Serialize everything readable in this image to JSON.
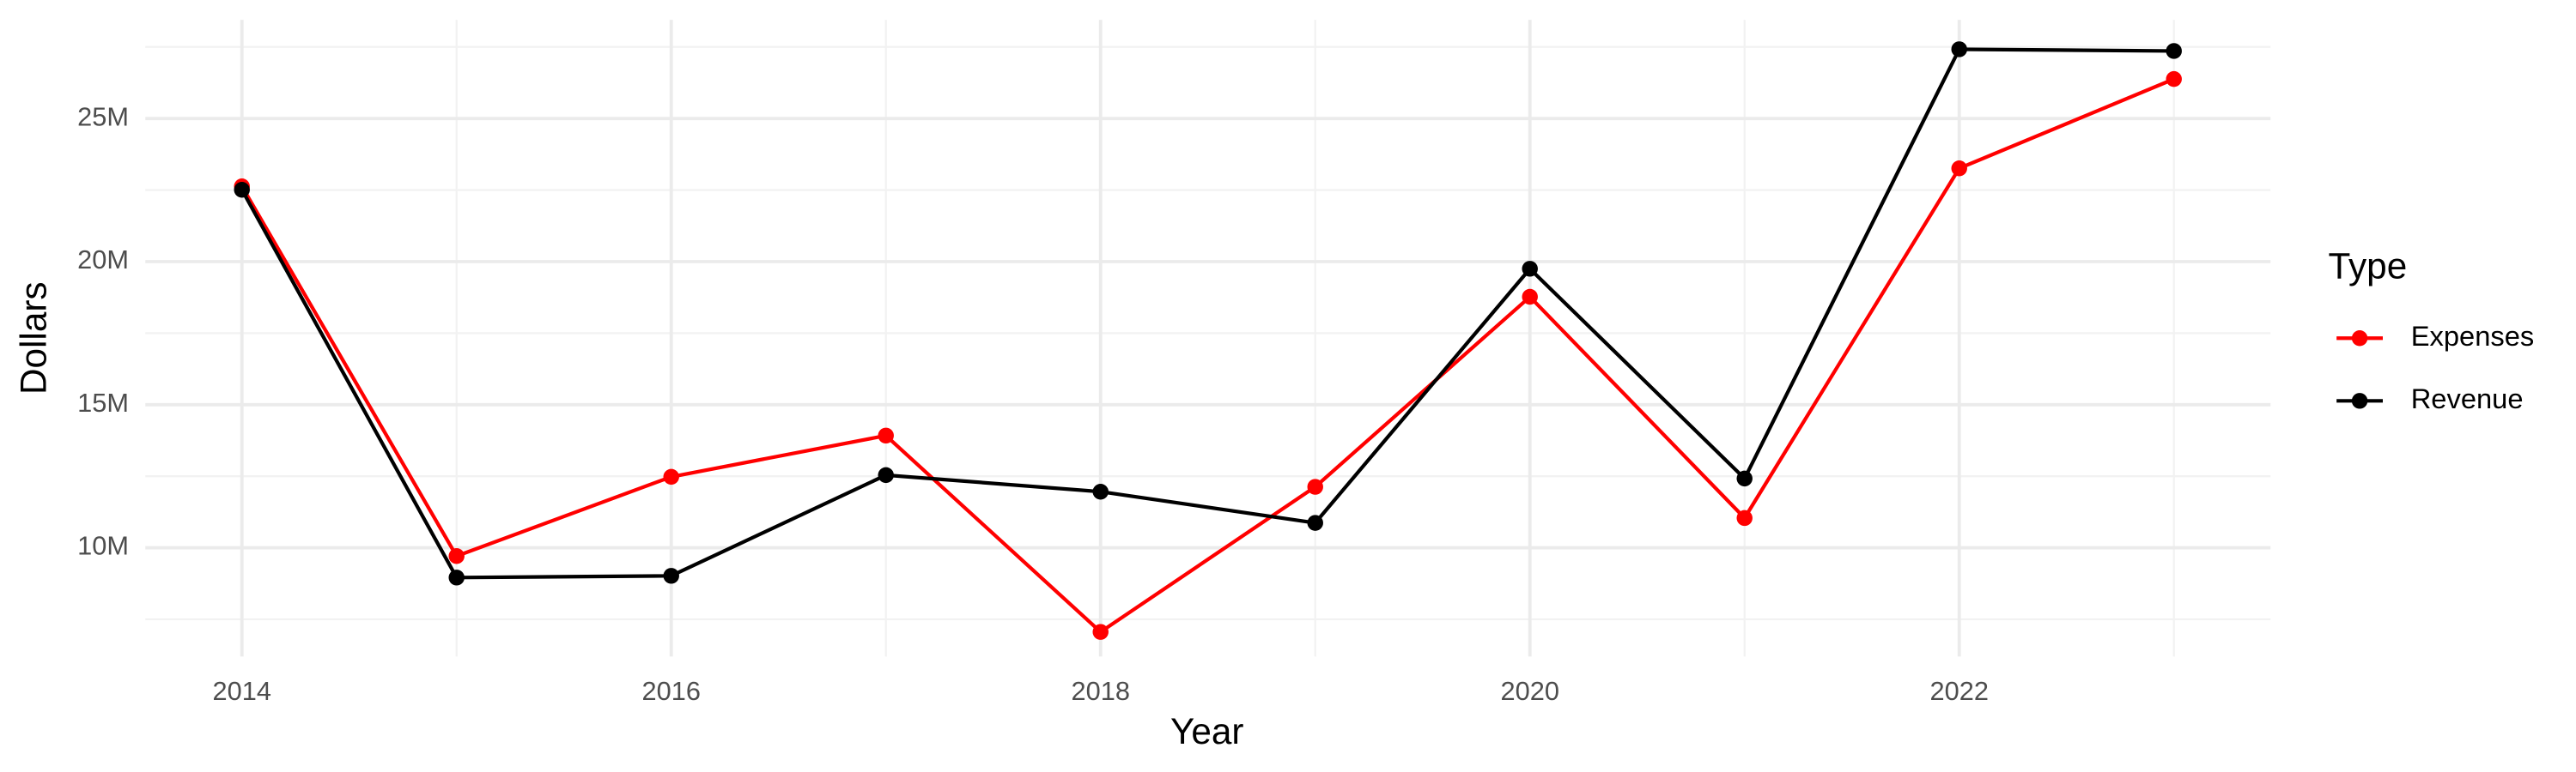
{
  "chart_data": {
    "type": "line",
    "x_label": "Year",
    "y_label": "Dollars",
    "legend_title": "Type",
    "x": [
      2014,
      2015,
      2016,
      2017,
      2018,
      2019,
      2020,
      2021,
      2022,
      2023
    ],
    "series": [
      {
        "name": "Expenses",
        "color": "#ff0000",
        "values": [
          22630000,
          9710000,
          12480000,
          13920000,
          7060000,
          12130000,
          18770000,
          11040000,
          23260000,
          26380000
        ]
      },
      {
        "name": "Revenue",
        "color": "#000000",
        "values": [
          22510000,
          8960000,
          9020000,
          12540000,
          11960000,
          10870000,
          19750000,
          12420000,
          27420000,
          27360000
        ]
      }
    ],
    "xlim": [
      2013.55,
      2023.45
    ],
    "xticks": [
      2014,
      2016,
      2018,
      2020,
      2022
    ],
    "ylim": [
      6200000,
      28450000
    ],
    "yticks": [
      {
        "value": 10000000,
        "label": "10M"
      },
      {
        "value": 15000000,
        "label": "15M"
      },
      {
        "value": 20000000,
        "label": "20M"
      },
      {
        "value": 25000000,
        "label": "25M"
      }
    ],
    "grid": true,
    "legend": "right"
  }
}
